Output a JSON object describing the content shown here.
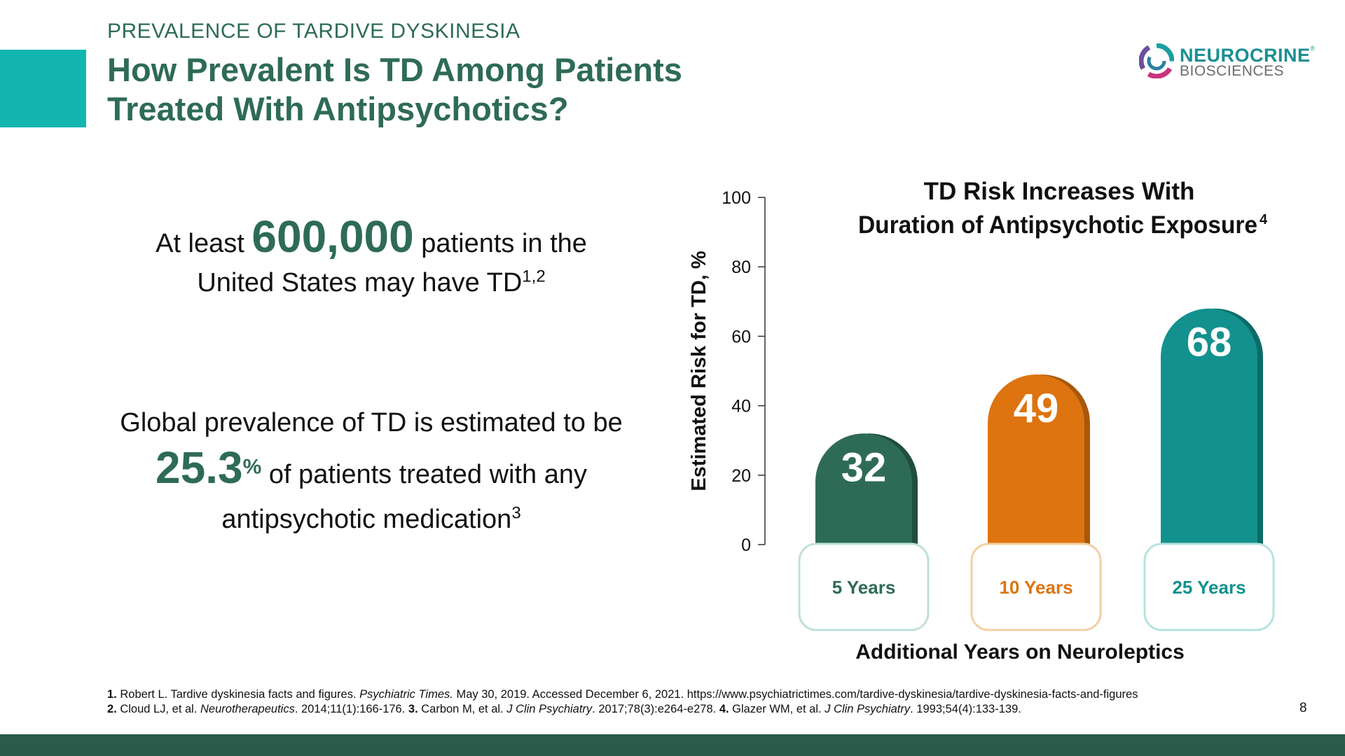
{
  "header": {
    "eyebrow": "PREVALENCE OF TARDIVE DYSKINESIA",
    "title": "How Prevalent Is TD Among Patients Treated With Antipsychotics?"
  },
  "logo": {
    "name": "NEUROCRINE",
    "trademark": "®",
    "subtitle": "BIOSCIENCES"
  },
  "stat1": {
    "prefix": "At least",
    "number": "600,000",
    "suffix_1": "patients in the",
    "suffix_2": "United States may have TD",
    "ref": "1,2"
  },
  "stat2": {
    "line1": "Global prevalence of TD is estimated to be",
    "number": "25.3",
    "unit": "%",
    "line2": "of patients treated with any",
    "line3": "antipsychotic medication",
    "ref": "3"
  },
  "chart_data": {
    "type": "bar",
    "title_line1": "TD Risk Increases With",
    "title_line2": "Duration of Antipsychotic Exposure",
    "title_ref": "4",
    "ylabel": "Estimated Risk for TD, %",
    "xlabel": "Additional Years on Neuroleptics",
    "ylim": [
      0,
      100
    ],
    "yticks": [
      0,
      20,
      40,
      60,
      80,
      100
    ],
    "categories": [
      "5 Years",
      "10 Years",
      "25 Years"
    ],
    "values": [
      32,
      49,
      68
    ],
    "colors": [
      "#2e6b56",
      "#dd7410",
      "#13918e"
    ],
    "shade_colors": [
      "#1f4d3e",
      "#a8580c",
      "#0c6b68"
    ],
    "border_colors": [
      "#bfe0db",
      "#f4cfa4",
      "#b6e3e0"
    ]
  },
  "footnotes": {
    "n1_num": "1.",
    "n1_text": " Robert L. Tardive dyskinesia facts and figures. ",
    "n1_journal": "Psychiatric Times.",
    "n1_rest": " May 30, 2019. Accessed December 6, 2021. https://www.psychiatrictimes.com/tardive-dyskinesia/tardive-dyskinesia-facts-and-figures",
    "n2_num": "2.",
    "n2_text": " Cloud LJ, et al. ",
    "n2_journal": "Neurotherapeutics",
    "n2_rest": ". 2014;11(1):166-176. ",
    "n3_num": "3.",
    "n3_text": " Carbon M, et al. ",
    "n3_journal": "J Clin Psychiatry",
    "n3_rest": ". 2017;78(3):e264-e278. ",
    "n4_num": "4.",
    "n4_text": " Glazer WM, et al. ",
    "n4_journal": "J Clin Psychiatry",
    "n4_rest": ". 1993;54(4):133-139."
  },
  "page_number": "8",
  "colors": {
    "accent": "#13b5b0",
    "brand_dark": "#2e6b56",
    "footer": "#2b5c4b"
  }
}
